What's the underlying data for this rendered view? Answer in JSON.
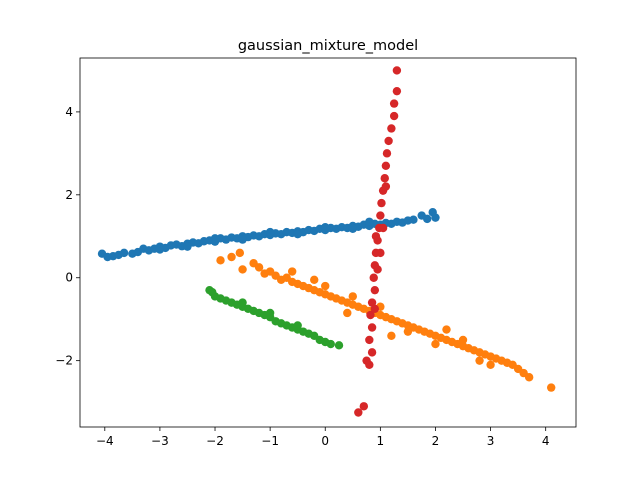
{
  "chart_data": {
    "type": "scatter",
    "title": "gaussian_mixture_model",
    "xlabel": "",
    "ylabel": "",
    "xlim": [
      -4.45,
      4.55
    ],
    "ylim": [
      -3.6,
      5.3
    ],
    "x_ticks": [
      -4,
      -3,
      -2,
      -1,
      0,
      1,
      2,
      3,
      4
    ],
    "x_tick_labels": [
      "−4",
      "−3",
      "−2",
      "−1",
      "0",
      "1",
      "2",
      "3",
      "4"
    ],
    "y_ticks": [
      -2,
      0,
      2,
      4
    ],
    "y_tick_labels": [
      "−2",
      "0",
      "2",
      "4"
    ],
    "grid": false,
    "series": [
      {
        "color": "#1f77b4",
        "points": [
          [
            -4.05,
            0.58
          ],
          [
            -3.95,
            0.5
          ],
          [
            -3.85,
            0.52
          ],
          [
            -3.75,
            0.55
          ],
          [
            -3.65,
            0.6
          ],
          [
            -3.5,
            0.58
          ],
          [
            -3.4,
            0.62
          ],
          [
            -3.3,
            0.7
          ],
          [
            -3.2,
            0.66
          ],
          [
            -3.1,
            0.7
          ],
          [
            -3.0,
            0.75
          ],
          [
            -2.9,
            0.72
          ],
          [
            -2.8,
            0.78
          ],
          [
            -2.7,
            0.8
          ],
          [
            -2.6,
            0.76
          ],
          [
            -2.5,
            0.82
          ],
          [
            -2.4,
            0.85
          ],
          [
            -2.3,
            0.83
          ],
          [
            -2.2,
            0.88
          ],
          [
            -2.1,
            0.9
          ],
          [
            -2.0,
            0.87
          ],
          [
            -1.9,
            0.95
          ],
          [
            -1.8,
            0.92
          ],
          [
            -1.7,
            0.97
          ],
          [
            -1.6,
            0.95
          ],
          [
            -1.5,
            1.0
          ],
          [
            -1.4,
            0.98
          ],
          [
            -1.3,
            1.02
          ],
          [
            -1.2,
            1.0
          ],
          [
            -1.1,
            1.05
          ],
          [
            -1.0,
            1.03
          ],
          [
            -0.9,
            1.07
          ],
          [
            -0.8,
            1.05
          ],
          [
            -0.7,
            1.1
          ],
          [
            -0.6,
            1.08
          ],
          [
            -0.5,
            1.12
          ],
          [
            -0.4,
            1.1
          ],
          [
            -0.3,
            1.15
          ],
          [
            -0.2,
            1.13
          ],
          [
            -0.1,
            1.18
          ],
          [
            0.0,
            1.15
          ],
          [
            0.1,
            1.2
          ],
          [
            0.2,
            1.18
          ],
          [
            0.3,
            1.22
          ],
          [
            0.4,
            1.2
          ],
          [
            0.5,
            1.25
          ],
          [
            0.6,
            1.23
          ],
          [
            0.7,
            1.28
          ],
          [
            0.8,
            1.25
          ],
          [
            0.9,
            1.3
          ],
          [
            1.0,
            1.28
          ],
          [
            1.1,
            1.32
          ],
          [
            1.2,
            1.3
          ],
          [
            1.3,
            1.35
          ],
          [
            1.4,
            1.33
          ],
          [
            1.5,
            1.38
          ],
          [
            1.6,
            1.4
          ],
          [
            1.75,
            1.5
          ],
          [
            1.85,
            1.42
          ],
          [
            2.0,
            1.45
          ],
          [
            1.95,
            1.58
          ],
          [
            -3.0,
            0.68
          ],
          [
            -2.5,
            0.75
          ],
          [
            -2.0,
            0.95
          ],
          [
            -1.5,
            0.92
          ],
          [
            -1.0,
            1.1
          ],
          [
            -0.5,
            1.05
          ],
          [
            0.0,
            1.22
          ],
          [
            0.5,
            1.18
          ],
          [
            0.8,
            1.35
          ]
        ]
      },
      {
        "color": "#ff7f0e",
        "points": [
          [
            -1.9,
            0.42
          ],
          [
            -1.7,
            0.5
          ],
          [
            -1.55,
            0.6
          ],
          [
            -1.5,
            0.2
          ],
          [
            -1.3,
            0.35
          ],
          [
            -1.2,
            0.25
          ],
          [
            -1.1,
            0.1
          ],
          [
            -1.0,
            0.15
          ],
          [
            -0.9,
            0.05
          ],
          [
            -0.8,
            -0.05
          ],
          [
            -0.7,
            0.0
          ],
          [
            -0.6,
            -0.1
          ],
          [
            -0.5,
            -0.15
          ],
          [
            -0.4,
            -0.2
          ],
          [
            -0.3,
            -0.25
          ],
          [
            -0.2,
            -0.3
          ],
          [
            -0.1,
            -0.35
          ],
          [
            0.0,
            -0.4
          ],
          [
            0.1,
            -0.45
          ],
          [
            0.2,
            -0.5
          ],
          [
            0.3,
            -0.55
          ],
          [
            0.4,
            -0.6
          ],
          [
            0.5,
            -0.65
          ],
          [
            0.6,
            -0.7
          ],
          [
            0.7,
            -0.75
          ],
          [
            0.8,
            -0.8
          ],
          [
            0.9,
            -0.85
          ],
          [
            1.0,
            -0.9
          ],
          [
            1.1,
            -0.95
          ],
          [
            1.2,
            -1.0
          ],
          [
            1.3,
            -1.05
          ],
          [
            1.4,
            -1.1
          ],
          [
            1.5,
            -1.15
          ],
          [
            1.6,
            -1.2
          ],
          [
            1.7,
            -1.25
          ],
          [
            1.8,
            -1.3
          ],
          [
            1.9,
            -1.35
          ],
          [
            2.0,
            -1.4
          ],
          [
            2.1,
            -1.45
          ],
          [
            2.2,
            -1.5
          ],
          [
            2.3,
            -1.55
          ],
          [
            2.4,
            -1.6
          ],
          [
            2.5,
            -1.65
          ],
          [
            2.6,
            -1.7
          ],
          [
            2.7,
            -1.75
          ],
          [
            2.8,
            -1.8
          ],
          [
            2.9,
            -1.85
          ],
          [
            3.0,
            -1.9
          ],
          [
            3.1,
            -1.95
          ],
          [
            3.2,
            -2.0
          ],
          [
            3.3,
            -2.05
          ],
          [
            3.4,
            -2.1
          ],
          [
            3.5,
            -2.2
          ],
          [
            3.6,
            -2.3
          ],
          [
            3.7,
            -2.4
          ],
          [
            4.1,
            -2.65
          ],
          [
            -0.6,
            0.15
          ],
          [
            0.0,
            -0.2
          ],
          [
            0.5,
            -0.45
          ],
          [
            1.0,
            -0.7
          ],
          [
            1.5,
            -1.3
          ],
          [
            2.0,
            -1.6
          ],
          [
            2.5,
            -1.5
          ],
          [
            3.0,
            -2.1
          ],
          [
            1.2,
            -1.4
          ],
          [
            0.4,
            -0.85
          ],
          [
            -0.2,
            -0.05
          ],
          [
            2.8,
            -2.0
          ],
          [
            2.2,
            -1.25
          ]
        ]
      },
      {
        "color": "#2ca02c",
        "points": [
          [
            -2.1,
            -0.3
          ],
          [
            -2.05,
            -0.35
          ],
          [
            -2.0,
            -0.45
          ],
          [
            -1.9,
            -0.5
          ],
          [
            -1.8,
            -0.55
          ],
          [
            -1.7,
            -0.6
          ],
          [
            -1.6,
            -0.65
          ],
          [
            -1.5,
            -0.7
          ],
          [
            -1.4,
            -0.75
          ],
          [
            -1.3,
            -0.8
          ],
          [
            -1.2,
            -0.85
          ],
          [
            -1.1,
            -0.9
          ],
          [
            -1.0,
            -0.95
          ],
          [
            -0.9,
            -1.05
          ],
          [
            -0.8,
            -1.1
          ],
          [
            -0.7,
            -1.15
          ],
          [
            -0.6,
            -1.2
          ],
          [
            -0.5,
            -1.25
          ],
          [
            -0.4,
            -1.3
          ],
          [
            -0.3,
            -1.35
          ],
          [
            -0.2,
            -1.4
          ],
          [
            -0.1,
            -1.5
          ],
          [
            0.0,
            -1.55
          ],
          [
            0.1,
            -1.6
          ],
          [
            0.25,
            -1.63
          ],
          [
            -1.5,
            -0.6
          ],
          [
            -1.0,
            -0.85
          ],
          [
            -0.5,
            -1.15
          ]
        ]
      },
      {
        "color": "#d62728",
        "points": [
          [
            0.6,
            -3.25
          ],
          [
            0.7,
            -3.1
          ],
          [
            0.75,
            -2.0
          ],
          [
            0.8,
            -2.1
          ],
          [
            0.85,
            -1.8
          ],
          [
            0.8,
            -1.5
          ],
          [
            0.85,
            -1.2
          ],
          [
            0.82,
            -0.9
          ],
          [
            0.85,
            -0.6
          ],
          [
            0.9,
            -0.3
          ],
          [
            0.88,
            0.0
          ],
          [
            0.9,
            0.3
          ],
          [
            0.92,
            0.6
          ],
          [
            0.95,
            0.9
          ],
          [
            0.98,
            1.2
          ],
          [
            1.0,
            1.5
          ],
          [
            1.02,
            1.8
          ],
          [
            1.05,
            2.1
          ],
          [
            1.08,
            2.4
          ],
          [
            1.1,
            2.7
          ],
          [
            1.12,
            3.0
          ],
          [
            1.15,
            3.3
          ],
          [
            1.2,
            3.6
          ],
          [
            1.25,
            3.9
          ],
          [
            1.25,
            4.2
          ],
          [
            1.3,
            4.5
          ],
          [
            1.3,
            5.0
          ],
          [
            0.9,
            -0.75
          ],
          [
            0.95,
            0.2
          ],
          [
            1.05,
            1.2
          ],
          [
            1.1,
            2.2
          ],
          [
            0.92,
            1.0
          ],
          [
            1.0,
            0.6
          ]
        ]
      }
    ]
  }
}
